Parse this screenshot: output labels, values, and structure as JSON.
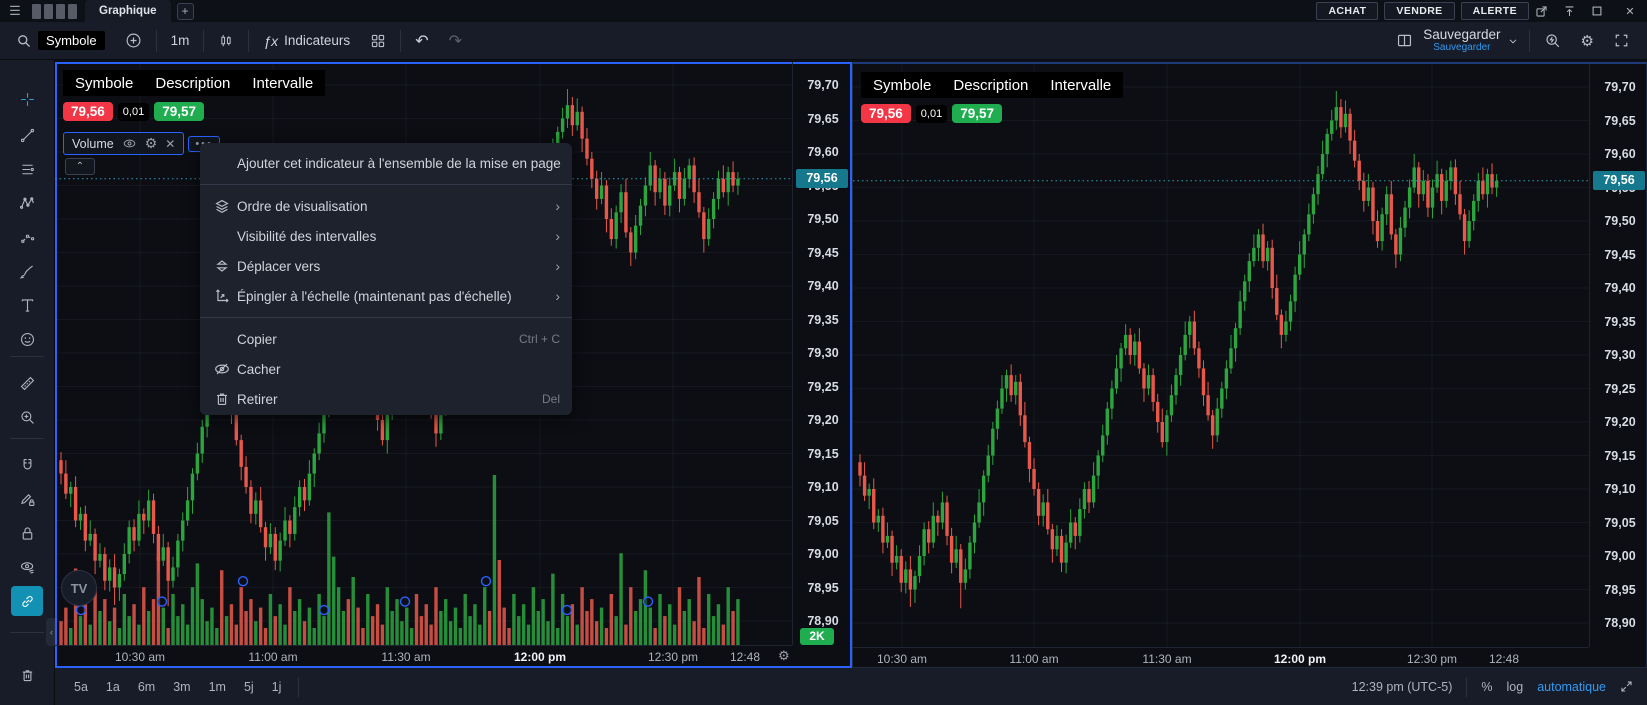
{
  "titlebar": {
    "tab": "Graphique",
    "add_tab": "+",
    "buy": "ACHAT",
    "sell": "VENDRE",
    "alert": "ALERTE"
  },
  "toolbar": {
    "symbol_search": "Symbole",
    "interval": "1m",
    "fx": "ƒx",
    "indicators": "Indicateurs",
    "save": "Sauvegarder",
    "save_hint": "Sauvegarder"
  },
  "sidebar": {
    "tools": [
      "cross-tool",
      "trend-line-tool",
      "fib-lines-tool",
      "xabcd-pattern-tool",
      "forecast-tool",
      "brush-tool",
      "text-tool",
      "emoji-tool",
      "ruler-tool",
      "zoom-in-tool",
      "magnet-tool",
      "drawing-lock-tool",
      "lock-all-tool",
      "hide-drawings-tool",
      "sync-drawings-tool",
      "remove-drawings-tool"
    ]
  },
  "panel_header": {
    "symbol": "Symbole",
    "description": "Description",
    "interval": "Intervalle",
    "bid": "79,56",
    "spread": "0,01",
    "ask": "79,57"
  },
  "legend": {
    "label": "Volume"
  },
  "context_menu": {
    "items": [
      {
        "label": "Ajouter cet indicateur à l'ensemble de la mise en page",
        "group": 1
      },
      {
        "icon": "layers-icon",
        "label": "Ordre de visualisation",
        "chevron": true,
        "group": 2
      },
      {
        "label": "Visibilité des intervalles",
        "chevron": true,
        "group": 2
      },
      {
        "icon": "move-to-icon",
        "label": "Déplacer vers",
        "chevron": true,
        "group": 2
      },
      {
        "icon": "pin-scale-icon",
        "label": "Épingler à l'échelle (maintenant pas d'échelle)",
        "chevron": true,
        "group": 2
      },
      {
        "label": "Copier",
        "shortcut": "Ctrl + C",
        "group": 3
      },
      {
        "icon": "eye-slash-icon",
        "label": "Cacher",
        "group": 3
      },
      {
        "icon": "trash-icon",
        "label": "Retirer",
        "shortcut": "Del",
        "group": 3
      }
    ]
  },
  "price_scale": {
    "ticks": [
      "79,70",
      "79,65",
      "79,60",
      "79,55",
      "79,50",
      "79,45",
      "79,40",
      "79,35",
      "79,30",
      "79,25",
      "79,20",
      "79,15",
      "79,10",
      "79,05",
      "79,00",
      "78,95",
      "78,90"
    ],
    "tick_values": [
      79.7,
      79.65,
      79.6,
      79.55,
      79.5,
      79.45,
      79.4,
      79.35,
      79.3,
      79.25,
      79.2,
      79.15,
      79.1,
      79.05,
      79.0,
      78.95,
      78.9
    ],
    "last_price_label": "79,56",
    "volume_axis_label": "2K"
  },
  "time_axis": {
    "labels": [
      "10:30 am",
      "11:00 am",
      "11:30 am",
      "12:00 pm",
      "12:30 pm",
      "12:48"
    ],
    "bold_index": 3
  },
  "bottombar": {
    "ranges": [
      "5a",
      "1a",
      "6m",
      "3m",
      "1m",
      "5j",
      "1j"
    ],
    "clock": "12:39 pm (UTC-5)",
    "percent": "%",
    "log": "log",
    "auto": "automatique"
  },
  "colors": {
    "accent_blue": "#2962ff",
    "last_price_badge": "#15788c",
    "bid_red": "#f23645",
    "ask_green": "#1fad50",
    "candle_up": "#2ca53e",
    "candle_down": "#e8584a",
    "dotted_line": "#2a9fb0",
    "link_blue": "#339af0"
  },
  "chart_data": {
    "type": "candlestick",
    "title": "",
    "xlabel": "",
    "ylabel": "",
    "x_labels": [
      "10:30 am",
      "11:00 am",
      "11:30 am",
      "12:00 pm",
      "12:30 pm",
      "12:48"
    ],
    "ylim": [
      78.9,
      79.7
    ],
    "last_price": 79.56,
    "grid": true,
    "closes": [
      79.12,
      79.09,
      79.1,
      79.05,
      79.06,
      79.02,
      79.03,
      78.99,
      79.0,
      78.96,
      78.98,
      78.95,
      78.97,
      79.0,
      79.04,
      79.02,
      79.06,
      79.05,
      79.08,
      79.03,
      78.99,
      79.01,
      78.96,
      78.98,
      79.02,
      79.05,
      79.08,
      79.12,
      79.15,
      79.19,
      79.22,
      79.25,
      79.27,
      79.24,
      79.26,
      79.21,
      79.17,
      79.13,
      79.1,
      79.06,
      79.08,
      79.04,
      79.01,
      79.03,
      78.99,
      79.02,
      79.05,
      79.03,
      79.07,
      79.1,
      79.08,
      79.12,
      79.15,
      79.18,
      79.22,
      79.25,
      79.28,
      79.31,
      79.33,
      79.3,
      79.32,
      79.28,
      79.25,
      79.27,
      79.23,
      79.2,
      79.17,
      79.21,
      79.24,
      79.27,
      79.3,
      79.33,
      79.35,
      79.31,
      79.28,
      79.24,
      79.21,
      79.18,
      79.22,
      79.25,
      79.28,
      79.31,
      79.34,
      79.38,
      79.41,
      79.44,
      79.46,
      79.48,
      79.44,
      79.46,
      79.4,
      79.36,
      79.33,
      79.35,
      79.38,
      79.42,
      79.45,
      79.48,
      79.51,
      79.54,
      79.57,
      79.6,
      79.63,
      79.65,
      79.67,
      79.64,
      79.66,
      79.62,
      79.59,
      79.56,
      79.53,
      79.55,
      79.5,
      79.47,
      79.51,
      79.54,
      79.48,
      79.45,
      79.49,
      79.52,
      79.55,
      79.58,
      79.54,
      79.56,
      79.52,
      79.55,
      79.57,
      79.53,
      79.56,
      79.58,
      79.54,
      79.51,
      79.47,
      79.5,
      79.53,
      79.56,
      79.54,
      79.57,
      79.55,
      79.56
    ],
    "volumes": [
      0.14,
      0.22,
      0.1,
      0.45,
      0.17,
      0.24,
      0.12,
      0.34,
      0.2,
      0.27,
      0.14,
      0.22,
      0.1,
      0.3,
      0.17,
      0.24,
      0.12,
      0.34,
      0.2,
      0.27,
      0.52,
      0.22,
      0.1,
      0.3,
      0.17,
      0.24,
      0.12,
      0.34,
      0.48,
      0.27,
      0.14,
      0.22,
      0.1,
      0.44,
      0.17,
      0.24,
      0.12,
      0.34,
      0.2,
      0.27,
      0.14,
      0.22,
      0.1,
      0.3,
      0.17,
      0.24,
      0.12,
      0.34,
      0.2,
      0.27,
      0.14,
      0.22,
      0.1,
      0.3,
      0.17,
      0.78,
      0.52,
      0.34,
      0.2,
      0.27,
      0.4,
      0.22,
      0.1,
      0.3,
      0.17,
      0.24,
      0.12,
      0.34,
      0.2,
      0.27,
      0.14,
      0.22,
      0.1,
      0.3,
      0.17,
      0.24,
      0.12,
      0.34,
      0.2,
      0.27,
      0.14,
      0.22,
      0.1,
      0.3,
      0.17,
      0.24,
      0.12,
      0.34,
      0.2,
      1.0,
      0.5,
      0.22,
      0.1,
      0.3,
      0.17,
      0.24,
      0.12,
      0.34,
      0.2,
      0.27,
      0.14,
      0.42,
      0.1,
      0.3,
      0.17,
      0.24,
      0.12,
      0.34,
      0.2,
      0.27,
      0.14,
      0.22,
      0.1,
      0.3,
      0.17,
      0.54,
      0.12,
      0.34,
      0.2,
      0.27,
      0.44,
      0.22,
      0.1,
      0.3,
      0.17,
      0.24,
      0.12,
      0.34,
      0.2,
      0.27,
      0.14,
      0.4,
      0.1,
      0.3,
      0.17,
      0.24,
      0.12,
      0.34,
      0.2,
      0.27
    ],
    "panels": [
      {
        "id": 1,
        "volume_pane": true,
        "selected": true,
        "marker_circles": true
      },
      {
        "id": 2,
        "volume_pane": false,
        "selected": false,
        "marker_circles": false
      }
    ]
  }
}
